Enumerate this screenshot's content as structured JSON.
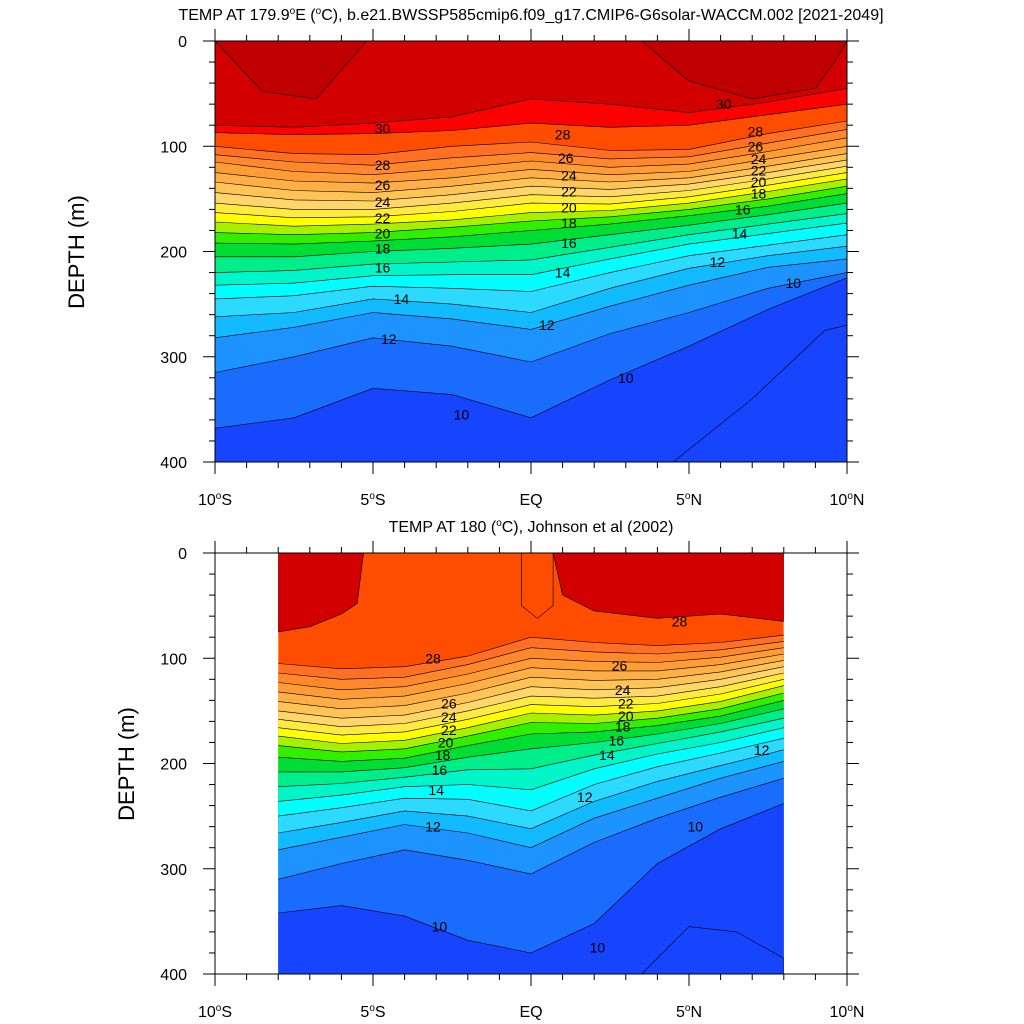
{
  "chart_data": [
    {
      "type": "heatmap",
      "subtype": "filled-contour",
      "title": "TEMP AT 179.9°E (°C), b.e21.BWSSP585cmip6.f09_g17.CMIP6-G6solar-WACCM.002 [2021-2049]",
      "title_parts": {
        "pre": "TEMP AT 179.9",
        "deg1": "o",
        "mid": "E (",
        "deg2": "o",
        "post": "C), b.e21.BWSSP585cmip6.f09_g17.CMIP6-G6solar-WACCM.002 [2021-2049]"
      },
      "xlabel": "",
      "ylabel": "DEPTH (m)",
      "xlim": [
        -10,
        10
      ],
      "ylim": [
        0,
        400
      ],
      "y_inverted": true,
      "x_ticks": [
        {
          "value": -10,
          "num": "10",
          "deg": "o",
          "hem": "S"
        },
        {
          "value": -5,
          "num": "5",
          "deg": "o",
          "hem": "S"
        },
        {
          "value": 0,
          "num": "EQ",
          "deg": "",
          "hem": ""
        },
        {
          "value": 5,
          "num": "5",
          "deg": "o",
          "hem": "N"
        },
        {
          "value": 10,
          "num": "10",
          "deg": "o",
          "hem": "N"
        }
      ],
      "y_ticks": [
        "0",
        "100",
        "200",
        "300",
        "400"
      ],
      "data_extent_x": [
        -10,
        10
      ],
      "contour_levels": [
        10,
        11,
        12,
        13,
        14,
        15,
        16,
        17,
        18,
        19,
        20,
        21,
        22,
        23,
        24,
        25,
        26,
        27,
        28,
        29,
        30
      ],
      "isotherm_x": [
        -10,
        -7.5,
        -5,
        -2.5,
        0,
        2.5,
        5,
        7.5,
        10
      ],
      "isotherm_depths": [
        {
          "t": 30,
          "depth": [
            80,
            82,
            78,
            72,
            55,
            60,
            68,
            58,
            45
          ]
        },
        {
          "t": 29,
          "depth": [
            87,
            89,
            88,
            85,
            78,
            82,
            80,
            70,
            60
          ]
        },
        {
          "t": 28,
          "depth": [
            100,
            107,
            108,
            100,
            96,
            104,
            103,
            88,
            76
          ]
        },
        {
          "t": 27,
          "depth": [
            108,
            115,
            118,
            111,
            106,
            112,
            110,
            97,
            84
          ]
        },
        {
          "t": 26,
          "depth": [
            115,
            124,
            127,
            121,
            114,
            120,
            117,
            105,
            92
          ]
        },
        {
          "t": 25,
          "depth": [
            125,
            133,
            135,
            130,
            122,
            127,
            124,
            112,
            100
          ]
        },
        {
          "t": 24,
          "depth": [
            134,
            142,
            144,
            138,
            130,
            134,
            130,
            119,
            107
          ]
        },
        {
          "t": 23,
          "depth": [
            144,
            151,
            152,
            146,
            138,
            141,
            136,
            125,
            113
          ]
        },
        {
          "t": 22,
          "depth": [
            154,
            160,
            160,
            154,
            146,
            148,
            142,
            131,
            119
          ]
        },
        {
          "t": 21,
          "depth": [
            163,
            168,
            167,
            162,
            154,
            155,
            148,
            137,
            125
          ]
        },
        {
          "t": 20,
          "depth": [
            172,
            176,
            174,
            170,
            163,
            161,
            154,
            143,
            131
          ]
        },
        {
          "t": 19,
          "depth": [
            182,
            184,
            182,
            177,
            171,
            167,
            160,
            150,
            138
          ]
        },
        {
          "t": 18,
          "depth": [
            192,
            193,
            190,
            186,
            180,
            174,
            166,
            157,
            145
          ]
        },
        {
          "t": 17,
          "depth": [
            205,
            205,
            200,
            197,
            193,
            184,
            175,
            165,
            154
          ]
        },
        {
          "t": 16,
          "depth": [
            220,
            218,
            212,
            210,
            208,
            196,
            184,
            174,
            164
          ]
        },
        {
          "t": 15,
          "depth": [
            232,
            230,
            223,
            222,
            222,
            207,
            193,
            183,
            173
          ]
        },
        {
          "t": 14,
          "depth": [
            245,
            242,
            233,
            235,
            238,
            220,
            204,
            194,
            184
          ]
        },
        {
          "t": 13,
          "depth": [
            262,
            258,
            245,
            250,
            258,
            235,
            216,
            204,
            195
          ]
        },
        {
          "t": 12,
          "depth": [
            282,
            272,
            258,
            264,
            274,
            252,
            232,
            215,
            207
          ]
        },
        {
          "t": 11,
          "depth": [
            315,
            300,
            282,
            290,
            305,
            278,
            258,
            235,
            220
          ]
        },
        {
          "t": 10,
          "depth": [
            368,
            358,
            330,
            336,
            358,
            322,
            290,
            255,
            225
          ]
        }
      ],
      "warm_30_patches": [
        {
          "x": [
            -10,
            -8.5,
            -6.8,
            -5.2
          ],
          "depth": [
            0,
            48,
            55,
            0
          ]
        },
        {
          "x": [
            3.5,
            5,
            7,
            9,
            9.6,
            10
          ],
          "depth": [
            0,
            38,
            55,
            45,
            20,
            0
          ]
        }
      ],
      "cold_9_patch": {
        "x": [
          4.5,
          7,
          9.3,
          10
        ],
        "depth": [
          400,
          340,
          275,
          270
        ]
      },
      "contour_labels": [
        {
          "text": "30",
          "x": -4.7,
          "y": 83
        },
        {
          "text": "30",
          "x": 6.1,
          "y": 60
        },
        {
          "text": "28",
          "x": -4.7,
          "y": 118
        },
        {
          "text": "26",
          "x": -4.7,
          "y": 137
        },
        {
          "text": "24",
          "x": -4.7,
          "y": 153
        },
        {
          "text": "22",
          "x": -4.7,
          "y": 168
        },
        {
          "text": "20",
          "x": -4.7,
          "y": 183
        },
        {
          "text": "18",
          "x": -4.7,
          "y": 197
        },
        {
          "text": "16",
          "x": -4.7,
          "y": 215
        },
        {
          "text": "14",
          "x": -4.1,
          "y": 245
        },
        {
          "text": "12",
          "x": -4.5,
          "y": 283
        },
        {
          "text": "10",
          "x": -2.2,
          "y": 355
        },
        {
          "text": "28",
          "x": 1.0,
          "y": 89
        },
        {
          "text": "26",
          "x": 1.1,
          "y": 111
        },
        {
          "text": "24",
          "x": 1.2,
          "y": 128
        },
        {
          "text": "22",
          "x": 1.2,
          "y": 143
        },
        {
          "text": "20",
          "x": 1.2,
          "y": 158
        },
        {
          "text": "18",
          "x": 1.2,
          "y": 173
        },
        {
          "text": "16",
          "x": 1.2,
          "y": 192
        },
        {
          "text": "14",
          "x": 1.0,
          "y": 220
        },
        {
          "text": "12",
          "x": 0.5,
          "y": 270
        },
        {
          "text": "10",
          "x": 3.0,
          "y": 320
        },
        {
          "text": "28",
          "x": 7.1,
          "y": 86
        },
        {
          "text": "26",
          "x": 7.1,
          "y": 100
        },
        {
          "text": "24",
          "x": 7.2,
          "y": 112
        },
        {
          "text": "22",
          "x": 7.2,
          "y": 123
        },
        {
          "text": "20",
          "x": 7.2,
          "y": 134
        },
        {
          "text": "18",
          "x": 7.2,
          "y": 145
        },
        {
          "text": "16",
          "x": 6.7,
          "y": 160
        },
        {
          "text": "14",
          "x": 6.6,
          "y": 183
        },
        {
          "text": "12",
          "x": 5.9,
          "y": 210
        },
        {
          "text": "10",
          "x": 8.3,
          "y": 230
        }
      ]
    },
    {
      "type": "heatmap",
      "subtype": "filled-contour",
      "title": "TEMP AT 180 (°C), Johnson et al (2002)",
      "title_parts": {
        "pre": "TEMP AT 180 (",
        "deg1": "o",
        "mid": "C), Johnson et al (2002)",
        "deg2": "",
        "post": ""
      },
      "xlabel": "",
      "ylabel": "DEPTH (m)",
      "xlim": [
        -10,
        10
      ],
      "ylim": [
        0,
        400
      ],
      "y_inverted": true,
      "x_ticks": [
        {
          "value": -10,
          "num": "10",
          "deg": "o",
          "hem": "S"
        },
        {
          "value": -5,
          "num": "5",
          "deg": "o",
          "hem": "S"
        },
        {
          "value": 0,
          "num": "EQ",
          "deg": "",
          "hem": ""
        },
        {
          "value": 5,
          "num": "5",
          "deg": "o",
          "hem": "N"
        },
        {
          "value": 10,
          "num": "10",
          "deg": "o",
          "hem": "N"
        }
      ],
      "y_ticks": [
        "0",
        "100",
        "200",
        "300",
        "400"
      ],
      "data_extent_x": [
        -8,
        8
      ],
      "contour_levels": [
        10,
        11,
        12,
        13,
        14,
        15,
        16,
        17,
        18,
        19,
        20,
        21,
        22,
        23,
        24,
        25,
        26,
        27,
        28,
        29,
        30
      ],
      "isotherm_x": [
        -8,
        -6,
        -4,
        -2,
        0,
        2,
        4,
        6,
        8
      ],
      "isotherm_depths": [
        {
          "t": 28,
          "depth": [
            105,
            110,
            108,
            98,
            80,
            85,
            88,
            85,
            78
          ]
        },
        {
          "t": 27,
          "depth": [
            114,
            120,
            118,
            106,
            90,
            94,
            96,
            92,
            84
          ]
        },
        {
          "t": 26,
          "depth": [
            123,
            130,
            127,
            115,
            100,
            103,
            104,
            99,
            90
          ]
        },
        {
          "t": 25,
          "depth": [
            132,
            139,
            136,
            124,
            109,
            112,
            112,
            106,
            96
          ]
        },
        {
          "t": 24,
          "depth": [
            141,
            148,
            145,
            133,
            118,
            121,
            120,
            113,
            102
          ]
        },
        {
          "t": 23,
          "depth": [
            150,
            157,
            154,
            142,
            127,
            130,
            128,
            120,
            108
          ]
        },
        {
          "t": 22,
          "depth": [
            158,
            165,
            162,
            150,
            136,
            138,
            136,
            127,
            114
          ]
        },
        {
          "t": 21,
          "depth": [
            166,
            173,
            170,
            158,
            144,
            146,
            143,
            134,
            120
          ]
        },
        {
          "t": 20,
          "depth": [
            174,
            181,
            178,
            166,
            152,
            154,
            150,
            141,
            126
          ]
        },
        {
          "t": 19,
          "depth": [
            183,
            189,
            186,
            174,
            161,
            162,
            157,
            148,
            133
          ]
        },
        {
          "t": 18,
          "depth": [
            194,
            198,
            195,
            183,
            172,
            170,
            164,
            155,
            140
          ]
        },
        {
          "t": 17,
          "depth": [
            208,
            208,
            204,
            194,
            186,
            180,
            172,
            162,
            148
          ]
        },
        {
          "t": 16,
          "depth": [
            222,
            219,
            213,
            206,
            205,
            192,
            181,
            170,
            157
          ]
        },
        {
          "t": 15,
          "depth": [
            236,
            230,
            222,
            220,
            225,
            205,
            191,
            180,
            166
          ]
        },
        {
          "t": 14,
          "depth": [
            250,
            242,
            233,
            234,
            245,
            220,
            203,
            190,
            176
          ]
        },
        {
          "t": 13,
          "depth": [
            266,
            256,
            245,
            250,
            262,
            236,
            217,
            202,
            187
          ]
        },
        {
          "t": 12,
          "depth": [
            282,
            270,
            258,
            266,
            280,
            252,
            233,
            214,
            198
          ]
        },
        {
          "t": 11,
          "depth": [
            310,
            295,
            282,
            292,
            305,
            275,
            252,
            232,
            214
          ]
        },
        {
          "t": 10,
          "depth": [
            342,
            335,
            345,
            368,
            380,
            352,
            295,
            262,
            238
          ]
        }
      ],
      "warm_29_patches": [
        {
          "x": [
            -8,
            -7,
            -6,
            -5.5,
            -5.3
          ],
          "depth": [
            75,
            70,
            58,
            48,
            0
          ]
        },
        {
          "x": [
            0.7,
            1,
            2,
            4,
            6,
            8
          ],
          "depth": [
            0,
            40,
            55,
            62,
            58,
            65
          ]
        }
      ],
      "jet_core": {
        "x": [
          -0.3,
          0.7
        ],
        "depth": [
          0,
          50
        ]
      },
      "cold_9_patch": {
        "x": [
          3.5,
          5,
          6.5,
          8
        ],
        "depth": [
          400,
          355,
          360,
          385
        ]
      },
      "contour_labels": [
        {
          "text": "28",
          "x": -3.1,
          "y": 100
        },
        {
          "text": "28",
          "x": 4.7,
          "y": 65
        },
        {
          "text": "26",
          "x": -2.6,
          "y": 143
        },
        {
          "text": "24",
          "x": -2.6,
          "y": 156
        },
        {
          "text": "22",
          "x": -2.6,
          "y": 168
        },
        {
          "text": "20",
          "x": -2.7,
          "y": 180
        },
        {
          "text": "18",
          "x": -2.8,
          "y": 192
        },
        {
          "text": "16",
          "x": -2.9,
          "y": 206
        },
        {
          "text": "14",
          "x": -3.0,
          "y": 225
        },
        {
          "text": "12",
          "x": -3.1,
          "y": 260
        },
        {
          "text": "10",
          "x": -2.9,
          "y": 355
        },
        {
          "text": "26",
          "x": 2.8,
          "y": 107
        },
        {
          "text": "24",
          "x": 2.9,
          "y": 130
        },
        {
          "text": "22",
          "x": 3.0,
          "y": 143
        },
        {
          "text": "20",
          "x": 3.0,
          "y": 155
        },
        {
          "text": "18",
          "x": 2.9,
          "y": 165
        },
        {
          "text": "16",
          "x": 2.7,
          "y": 178
        },
        {
          "text": "14",
          "x": 2.4,
          "y": 192
        },
        {
          "text": "12",
          "x": 1.7,
          "y": 232
        },
        {
          "text": "10",
          "x": 5.2,
          "y": 260
        },
        {
          "text": "10",
          "x": 2.1,
          "y": 375
        },
        {
          "text": "12",
          "x": 7.3,
          "y": 187
        }
      ]
    }
  ]
}
